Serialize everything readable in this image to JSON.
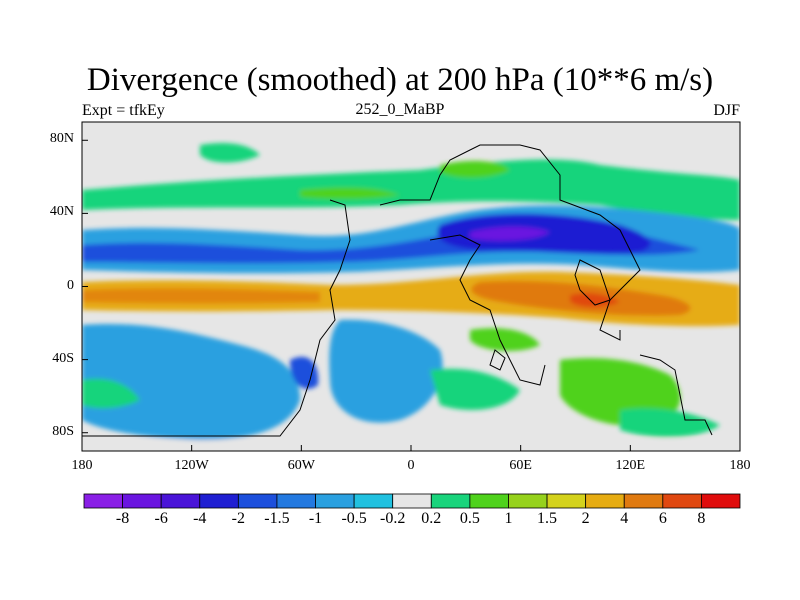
{
  "title": "Divergence (smoothed) at 200 hPa (10**6 m/s)",
  "subtitle_left": "Expt = tfkEy",
  "subtitle_center": "252_0_MaBP",
  "subtitle_right": "DJF",
  "y_ticks": [
    {
      "value": 80,
      "label": "80N"
    },
    {
      "value": 40,
      "label": "40N"
    },
    {
      "value": 0,
      "label": "0"
    },
    {
      "value": -40,
      "label": "40S"
    },
    {
      "value": -80,
      "label": "80S"
    }
  ],
  "x_ticks": [
    {
      "value": -180,
      "label": "180"
    },
    {
      "value": -120,
      "label": "120W"
    },
    {
      "value": -60,
      "label": "60W"
    },
    {
      "value": 0,
      "label": "0"
    },
    {
      "value": 60,
      "label": "60E"
    },
    {
      "value": 120,
      "label": "120E"
    },
    {
      "value": 180,
      "label": "180"
    }
  ],
  "colorbar": {
    "colors": [
      "#8a1fe6",
      "#6a15e0",
      "#4a14d8",
      "#1f1fd2",
      "#1c4fdc",
      "#2379e0",
      "#2aa0e0",
      "#21c1e0",
      "#e6e6e6",
      "#19d47c",
      "#4fd21c",
      "#96d21c",
      "#d4d21c",
      "#e6ac12",
      "#e07a10",
      "#e04810",
      "#e00c0c"
    ],
    "labels": [
      "-8",
      "-6",
      "-4",
      "-2",
      "-1.5",
      "-1",
      "-0.5",
      "-0.2",
      "0.2",
      "0.5",
      "1",
      "1.5",
      "2",
      "4",
      "6",
      "8"
    ]
  },
  "chart_data": {
    "type": "heatmap",
    "title": "Divergence (smoothed) at 200 hPa (10**6 m/s)",
    "xlim": [
      -180,
      180
    ],
    "ylim": [
      -90,
      90
    ],
    "levels": [
      -8,
      -6,
      -4,
      -2,
      -1.5,
      -1,
      -0.5,
      -0.2,
      0.2,
      0.5,
      1,
      1.5,
      2,
      4,
      6,
      8
    ],
    "features": [
      {
        "lon": [
          -180,
          180
        ],
        "lat": [
          -15,
          5
        ],
        "value": 2,
        "description": "equatorial divergence band"
      },
      {
        "lon": [
          40,
          120
        ],
        "lat": [
          -20,
          0
        ],
        "value": 4
      },
      {
        "lon": [
          0,
          130
        ],
        "lat": [
          15,
          45
        ],
        "value": -4
      },
      {
        "lon": [
          -180,
          180
        ],
        "lat": [
          5,
          25
        ],
        "value": -1.5
      },
      {
        "lon": [
          -180,
          180
        ],
        "lat": [
          35,
          55
        ],
        "value": 0.5
      },
      {
        "lon": [
          -180,
          180
        ],
        "lat": [
          -70,
          -30
        ],
        "value": -0.5
      }
    ]
  }
}
